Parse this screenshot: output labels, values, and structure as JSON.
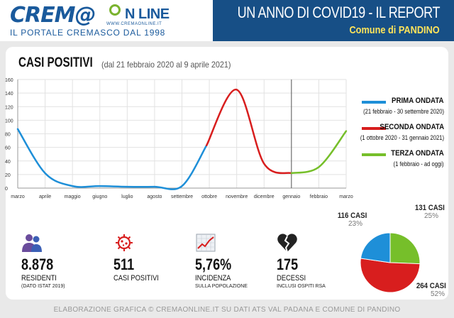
{
  "header": {
    "logo_prefix": "CREM@",
    "logo_suffix": "N LINE",
    "logo_site": "WWW.CREMAONLINE.IT",
    "tagline": "IL PORTALE CREMASCO DAL 1998",
    "report_title": "UN ANNO DI COVID19 - IL REPORT",
    "report_subtitle": "Comune di PANDINO"
  },
  "chart_data": {
    "type": "line",
    "title": "CASI POSITIVI",
    "subtitle": "(dal 21 febbraio 2020 al 9 aprile 2021)",
    "categories": [
      "marzo",
      "aprile",
      "maggio",
      "giugno",
      "luglio",
      "agosto",
      "settembre",
      "ottobre",
      "novembre",
      "dicembre",
      "gennaio",
      "febbraio",
      "marzo"
    ],
    "ylim": [
      0,
      160
    ],
    "yticks": [
      0,
      20,
      40,
      60,
      80,
      100,
      120,
      140,
      160
    ],
    "grid": true,
    "legend_position": "right",
    "series": [
      {
        "name": "PRIMA ONDATA",
        "dates": "(21 febbraio - 30 settembre 2020)",
        "color": "#1e8fd8",
        "points": [
          [
            0,
            87
          ],
          [
            1,
            22
          ],
          [
            2,
            3
          ],
          [
            3,
            3
          ],
          [
            4,
            2
          ],
          [
            5,
            2
          ],
          [
            6,
            3
          ],
          [
            6.9,
            63
          ]
        ]
      },
      {
        "name": "SECONDA ONDATA",
        "dates": "(1 ottobre 2020 - 31 gennaio 2021)",
        "color": "#d81e1e",
        "points": [
          [
            6.9,
            63
          ],
          [
            8,
            145
          ],
          [
            9,
            36
          ],
          [
            10,
            22
          ]
        ]
      },
      {
        "name": "TERZA ONDATA",
        "dates": "(1 febbraio - ad oggi)",
        "color": "#76bf2a",
        "points": [
          [
            10,
            22
          ],
          [
            11,
            31
          ],
          [
            12,
            84
          ]
        ]
      }
    ],
    "marker_at_category": "gennaio"
  },
  "stats": [
    {
      "value": "8.878",
      "label": "RESIDENTI",
      "note": "(DATO ISTAT 2019)",
      "icon": "people-icon",
      "color": "#6a4c9c"
    },
    {
      "value": "511",
      "label": "CASI POSITIVI",
      "note": "",
      "icon": "virus-icon",
      "color": "#d81e1e"
    },
    {
      "value": "5,76%",
      "label": "INCIDENZA",
      "note": "SULLA POPOLAZIONE",
      "icon": "chart-up-icon",
      "color": "#d81e1e"
    },
    {
      "value": "175",
      "label": "DECESSI",
      "note": "INCLUSI OSPITI RSA",
      "icon": "broken-heart-icon",
      "color": "#222222"
    }
  ],
  "pie": {
    "slices": [
      {
        "label": "131 CASI",
        "pct": "25%",
        "value": 131,
        "color": "#76bf2a"
      },
      {
        "label": "264 CASI",
        "pct": "52%",
        "value": 264,
        "color": "#d81e1e"
      },
      {
        "label": "116 CASI",
        "pct": "23%",
        "value": 116,
        "color": "#1e8fd8"
      }
    ]
  },
  "footer": "ELABORAZIONE GRAFICA © CREMAONLINE.IT SU DATI ATS VAL PADANA E COMUNE DI PANDINO"
}
